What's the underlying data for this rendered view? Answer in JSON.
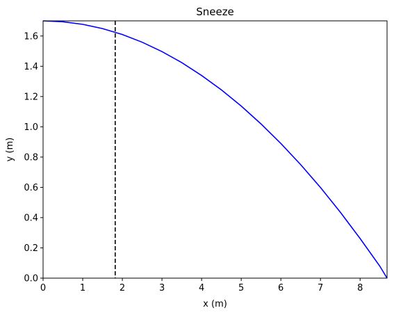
{
  "chart_data": {
    "type": "line",
    "title": "Sneeze",
    "xlabel": "x (m)",
    "ylabel": "y (m)",
    "xlim": [
      0,
      8.68
    ],
    "ylim": [
      0,
      1.7
    ],
    "xticks": [
      0,
      1,
      2,
      3,
      4,
      5,
      6,
      7,
      8
    ],
    "xtick_labels": [
      "0",
      "1",
      "2",
      "3",
      "4",
      "5",
      "6",
      "7",
      "8"
    ],
    "yticks": [
      0.0,
      0.2,
      0.4,
      0.6,
      0.8,
      1.0,
      1.2,
      1.4,
      1.6
    ],
    "ytick_labels": [
      "0.0",
      "0.2",
      "0.4",
      "0.6",
      "0.8",
      "1.0",
      "1.2",
      "1.4",
      "1.6"
    ],
    "grid": false,
    "series": [
      {
        "color": "#0000ff",
        "style": "solid",
        "x": [
          0,
          0.5,
          1.0,
          1.5,
          2.0,
          2.5,
          3.0,
          3.5,
          4.0,
          4.5,
          5.0,
          5.5,
          6.0,
          6.5,
          7.0,
          7.5,
          8.0,
          8.5,
          8.68
        ],
        "y": [
          1.7,
          1.694,
          1.677,
          1.649,
          1.61,
          1.559,
          1.497,
          1.424,
          1.339,
          1.244,
          1.137,
          1.019,
          0.89,
          0.75,
          0.599,
          0.436,
          0.262,
          0.078,
          0.0
        ]
      }
    ],
    "vlines": [
      {
        "x": 1.82,
        "color": "#000000",
        "style": "dashed"
      }
    ]
  }
}
